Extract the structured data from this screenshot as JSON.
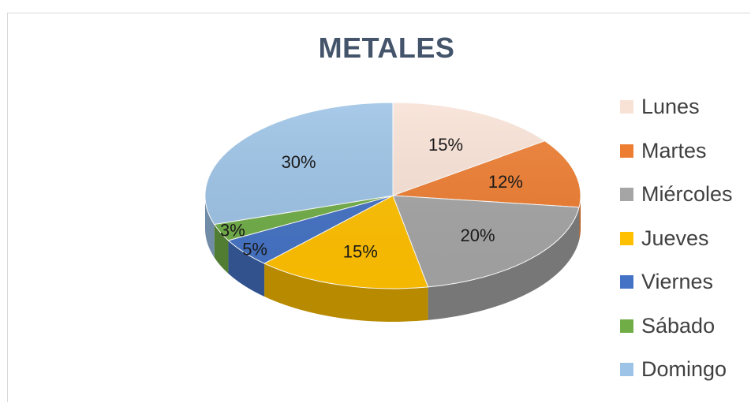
{
  "chart_data": {
    "type": "pie",
    "title": "METALES",
    "three_d": true,
    "legend_position": "right",
    "categories": [
      "Lunes",
      "Martes",
      "Miércoles",
      "Jueves",
      "Viernes",
      "Sábado",
      "Domingo"
    ],
    "values": [
      15,
      12,
      20,
      15,
      5,
      3,
      30
    ],
    "labels": [
      "15%",
      "12%",
      "20%",
      "15%",
      "5%",
      "3%",
      "30%"
    ],
    "colors": [
      "#f8e2d6",
      "#ed7d31",
      "#a5a5a5",
      "#ffc000",
      "#4472c4",
      "#70ad47",
      "#9dc3e6"
    ]
  }
}
